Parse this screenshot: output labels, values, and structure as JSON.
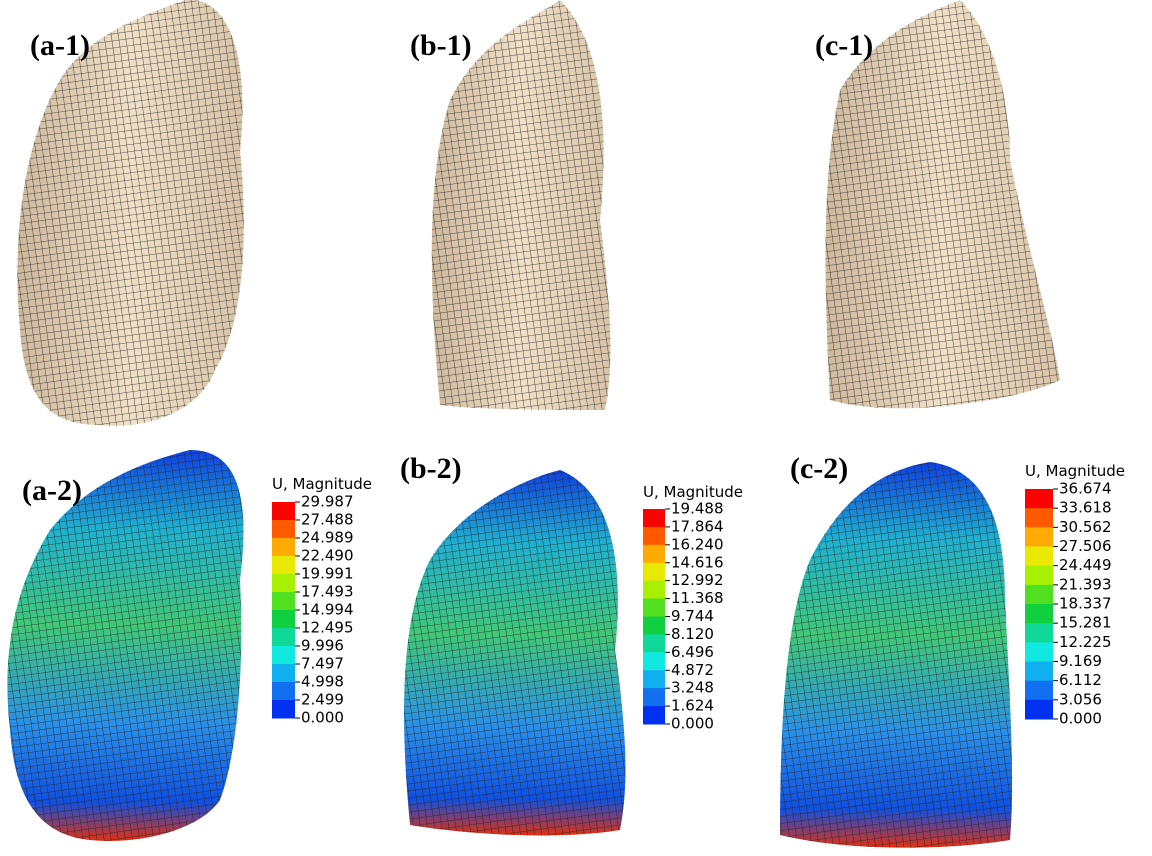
{
  "panels": [
    {
      "label": "(a-1)"
    },
    {
      "label": "(b-1)"
    },
    {
      "label": "(c-1)"
    },
    {
      "label": "(a-2)"
    },
    {
      "label": "(b-2)"
    },
    {
      "label": "(c-2)"
    }
  ],
  "legends": [
    {
      "title": "U, Magnitude",
      "values": [
        "29.987",
        "27.488",
        "24.989",
        "22.490",
        "19.991",
        "17.493",
        "14.994",
        "12.495",
        "9.996",
        "7.497",
        "4.998",
        "2.499",
        "0.000"
      ]
    },
    {
      "title": "U, Magnitude",
      "values": [
        "19.488",
        "17.864",
        "16.240",
        "14.616",
        "12.992",
        "11.368",
        "9.744",
        "8.120",
        "6.496",
        "4.872",
        "3.248",
        "1.624",
        "0.000"
      ]
    },
    {
      "title": "U, Magnitude",
      "values": [
        "36.674",
        "33.618",
        "30.562",
        "27.506",
        "24.449",
        "21.393",
        "18.337",
        "15.281",
        "12.225",
        "9.169",
        "6.112",
        "3.056",
        "0.000"
      ]
    }
  ]
}
